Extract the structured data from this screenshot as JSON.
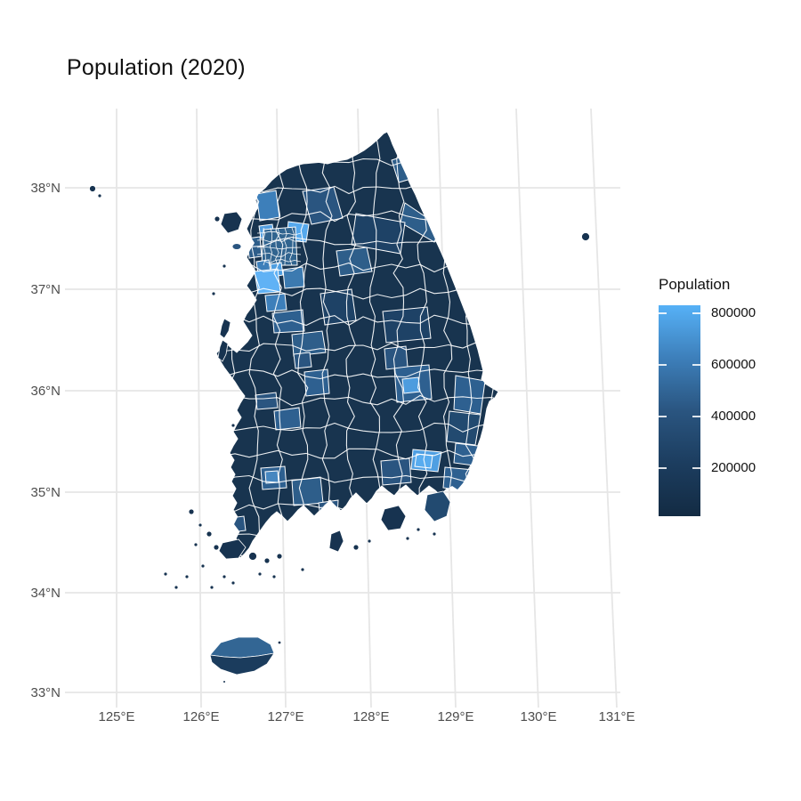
{
  "title": "Population (2020)",
  "axes": {
    "x": [
      "125°E",
      "126°E",
      "127°E",
      "128°E",
      "129°E",
      "130°E",
      "131°E"
    ],
    "y": [
      "38°N",
      "37°N",
      "36°N",
      "35°N",
      "34°N",
      "33°N"
    ]
  },
  "legend": {
    "title": "Population",
    "labels": [
      "800000",
      "600000",
      "400000",
      "200000"
    ],
    "gradient": [
      "#132B43",
      "#1C3D5F",
      "#2A5580",
      "#3D7FBA",
      "#56B1F7"
    ]
  },
  "chart_data": {
    "type": "choropleth_map",
    "title": "Population (2020)",
    "geography_depicted": "South Korea, municipal-level districts",
    "fill_variable": "Population",
    "legend_breaks": [
      200000,
      400000,
      600000,
      800000
    ],
    "color_scale": {
      "low_value_color": "#132B43",
      "high_value_color": "#56B1F7",
      "orientation": "vertical colourbar, high values at top"
    },
    "x_axis": {
      "label_type": "longitude",
      "ticks": [
        "125°E",
        "126°E",
        "127°E",
        "128°E",
        "129°E",
        "130°E",
        "131°E"
      ]
    },
    "y_axis": {
      "label_type": "latitude",
      "ticks": [
        "38°N",
        "37°N",
        "36°N",
        "35°N",
        "34°N",
        "33°N"
      ]
    },
    "grid": "light gray graticule on white panel",
    "legend_position": "right"
  },
  "map": {
    "base_color": "#18344F",
    "island_color": "#173350",
    "border_color": "#FFFFFF",
    "patches": [
      {
        "name": "chuncheon",
        "color": "#2A5580"
      },
      {
        "name": "sokcho-goseong",
        "color": "#2E5E8A"
      },
      {
        "name": "gangneung-coast",
        "color": "#2E5E8A"
      },
      {
        "name": "pyeongchang",
        "color": "#1E4266"
      },
      {
        "name": "wonju",
        "color": "#2E5E8A"
      },
      {
        "name": "paju",
        "color": "#3D7FBA"
      },
      {
        "name": "goyang",
        "color": "#549FE0"
      },
      {
        "name": "namyangju",
        "color": "#56A9ED"
      },
      {
        "name": "seoul-cluster",
        "color": "#31648F"
      },
      {
        "name": "incheon",
        "color": "#2E5E8A"
      },
      {
        "name": "ansan",
        "color": "#3D7FBA"
      },
      {
        "name": "suwon",
        "color": "#4E9EE0"
      },
      {
        "name": "yongin",
        "color": "#3C7AB0"
      },
      {
        "name": "hwaseong",
        "color": "#60B2F5"
      },
      {
        "name": "pyeongtaek",
        "color": "#3D7FBA"
      },
      {
        "name": "cheonan-asan",
        "color": "#2E6090"
      },
      {
        "name": "chungju",
        "color": "#1E4266"
      },
      {
        "name": "cheongju",
        "color": "#2E5E8A"
      },
      {
        "name": "sejong",
        "color": "#2A5580"
      },
      {
        "name": "daejeon",
        "color": "#2E6090"
      },
      {
        "name": "gunsan",
        "color": "#2A5580"
      },
      {
        "name": "jeonju",
        "color": "#2E6090"
      },
      {
        "name": "daegu",
        "color": "#2E6090"
      },
      {
        "name": "daegu-center",
        "color": "#4D9CDE"
      },
      {
        "name": "gumi",
        "color": "#2A5580"
      },
      {
        "name": "andong",
        "color": "#1E4266"
      },
      {
        "name": "pohang",
        "color": "#2E6090"
      },
      {
        "name": "gyeongju",
        "color": "#224A70"
      },
      {
        "name": "ulsan",
        "color": "#2E6090"
      },
      {
        "name": "busan",
        "color": "#2E6090"
      },
      {
        "name": "changwon-gimhae",
        "color": "#4F9FE2"
      },
      {
        "name": "gimhae-bright",
        "color": "#58ACEF"
      },
      {
        "name": "jinju",
        "color": "#2A5580"
      },
      {
        "name": "gwangju",
        "color": "#2E6090"
      },
      {
        "name": "gwangju-center",
        "color": "#4787C0"
      },
      {
        "name": "suncheon",
        "color": "#2E5E8A"
      },
      {
        "name": "yeosu",
        "color": "#2A5580"
      },
      {
        "name": "mokpo",
        "color": "#2A5580"
      }
    ],
    "islands": {
      "jeju_north_color": "#336694",
      "jeju_south_color": "#1B3C5D",
      "geoje_color": "#224A70",
      "yeongjong_color": "#2A5580"
    }
  }
}
